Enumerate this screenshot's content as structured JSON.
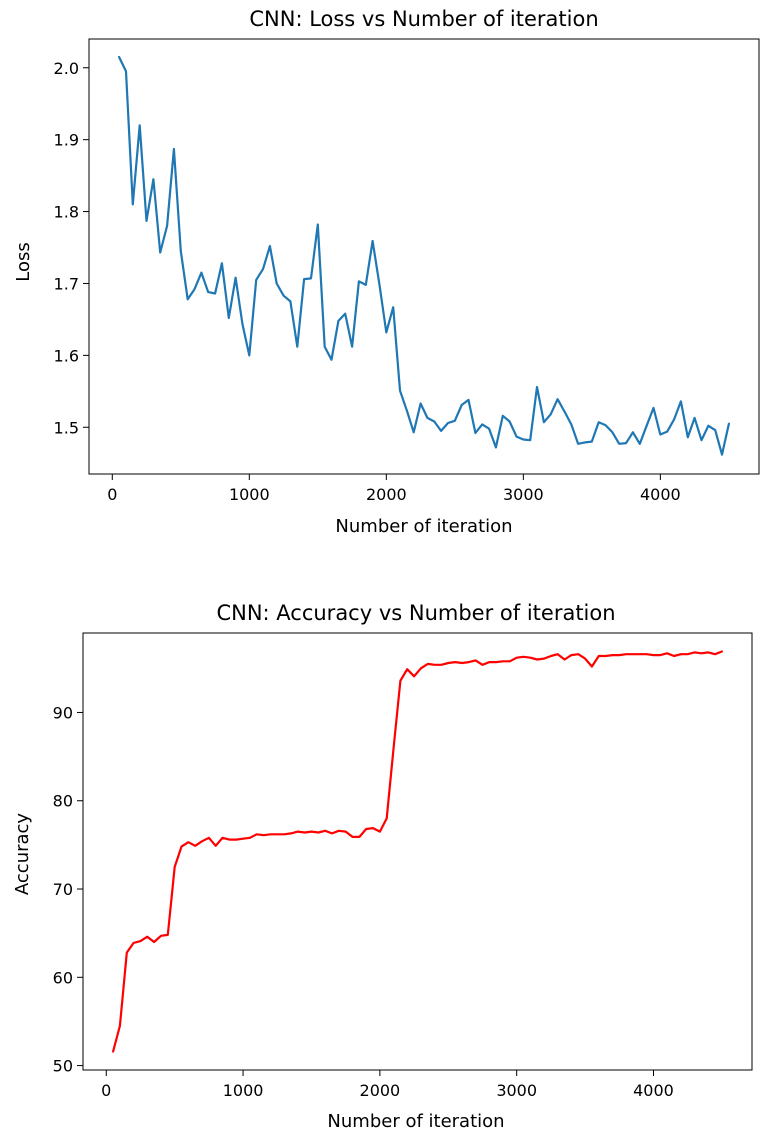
{
  "chart_data": [
    {
      "type": "line",
      "title": "CNN: Loss vs Number of iteration",
      "xlabel": "Number of iteration",
      "ylabel": "Loss",
      "xlim": [
        -170,
        4720
      ],
      "ylim": [
        1.435,
        2.04
      ],
      "xticks": [
        0,
        1000,
        2000,
        3000,
        4000
      ],
      "yticks": [
        1.5,
        1.6,
        1.7,
        1.8,
        1.9,
        2.0
      ],
      "ytick_decimals": 1,
      "grid": false,
      "color": "#1f77b4",
      "x": [
        50,
        100,
        150,
        200,
        250,
        300,
        350,
        400,
        450,
        500,
        550,
        600,
        650,
        700,
        750,
        800,
        850,
        900,
        950,
        1000,
        1050,
        1100,
        1150,
        1200,
        1250,
        1300,
        1350,
        1400,
        1450,
        1500,
        1550,
        1600,
        1650,
        1700,
        1750,
        1800,
        1850,
        1900,
        1950,
        2000,
        2050,
        2100,
        2150,
        2200,
        2250,
        2300,
        2350,
        2400,
        2450,
        2500,
        2550,
        2600,
        2650,
        2700,
        2750,
        2800,
        2850,
        2900,
        2950,
        3000,
        3050,
        3100,
        3150,
        3200,
        3250,
        3300,
        3350,
        3400,
        3450,
        3500,
        3550,
        3600,
        3650,
        3700,
        3750,
        3800,
        3850,
        3900,
        3950,
        4000,
        4050,
        4100,
        4150,
        4200,
        4250,
        4300,
        4350,
        4400,
        4450,
        4500
      ],
      "y": [
        2.015,
        1.995,
        1.81,
        1.92,
        1.787,
        1.845,
        1.743,
        1.78,
        1.887,
        1.745,
        1.678,
        1.692,
        1.715,
        1.688,
        1.686,
        1.728,
        1.652,
        1.708,
        1.643,
        1.6,
        1.705,
        1.72,
        1.752,
        1.7,
        1.683,
        1.675,
        1.612,
        1.706,
        1.707,
        1.782,
        1.612,
        1.594,
        1.648,
        1.658,
        1.612,
        1.703,
        1.698,
        1.759,
        1.698,
        1.632,
        1.667,
        1.551,
        1.523,
        1.493,
        1.533,
        1.513,
        1.508,
        1.495,
        1.506,
        1.509,
        1.531,
        1.538,
        1.492,
        1.504,
        1.498,
        1.472,
        1.516,
        1.508,
        1.487,
        1.483,
        1.482,
        1.556,
        1.507,
        1.518,
        1.539,
        1.522,
        1.504,
        1.477,
        1.479,
        1.48,
        1.507,
        1.503,
        1.493,
        1.477,
        1.478,
        1.493,
        1.477,
        1.502,
        1.527,
        1.49,
        1.494,
        1.511,
        1.536,
        1.486,
        1.513,
        1.482,
        1.502,
        1.496,
        1.462,
        1.505
      ]
    },
    {
      "type": "line",
      "title": "CNN: Accuracy vs Number of iteration",
      "xlabel": "Number of iteration",
      "ylabel": "Accuracy",
      "xlim": [
        -170,
        4720
      ],
      "ylim": [
        49.5,
        99.0
      ],
      "xticks": [
        0,
        1000,
        2000,
        3000,
        4000
      ],
      "yticks": [
        50,
        60,
        70,
        80,
        90
      ],
      "ytick_decimals": 0,
      "grid": false,
      "color": "#ff0000",
      "x": [
        50,
        100,
        150,
        200,
        250,
        300,
        350,
        400,
        450,
        500,
        550,
        600,
        650,
        700,
        750,
        800,
        850,
        900,
        950,
        1000,
        1050,
        1100,
        1150,
        1200,
        1250,
        1300,
        1350,
        1400,
        1450,
        1500,
        1550,
        1600,
        1650,
        1700,
        1750,
        1800,
        1850,
        1900,
        1950,
        2000,
        2050,
        2100,
        2150,
        2200,
        2250,
        2300,
        2350,
        2400,
        2450,
        2500,
        2550,
        2600,
        2650,
        2700,
        2750,
        2800,
        2850,
        2900,
        2950,
        3000,
        3050,
        3100,
        3150,
        3200,
        3250,
        3300,
        3350,
        3400,
        3450,
        3500,
        3550,
        3600,
        3650,
        3700,
        3750,
        3800,
        3850,
        3900,
        3950,
        4000,
        4050,
        4100,
        4150,
        4200,
        4250,
        4300,
        4350,
        4400,
        4450,
        4500
      ],
      "y": [
        51.6,
        54.5,
        62.8,
        63.9,
        64.1,
        64.6,
        64.0,
        64.7,
        64.8,
        72.5,
        74.8,
        75.3,
        74.9,
        75.4,
        75.8,
        74.9,
        75.8,
        75.6,
        75.6,
        75.7,
        75.8,
        76.2,
        76.1,
        76.2,
        76.2,
        76.2,
        76.3,
        76.5,
        76.4,
        76.5,
        76.4,
        76.6,
        76.3,
        76.6,
        76.5,
        75.9,
        75.9,
        76.8,
        76.9,
        76.5,
        78.0,
        86.0,
        93.6,
        94.9,
        94.1,
        95.0,
        95.5,
        95.4,
        95.4,
        95.6,
        95.7,
        95.6,
        95.7,
        95.9,
        95.4,
        95.7,
        95.7,
        95.8,
        95.8,
        96.2,
        96.3,
        96.2,
        96.0,
        96.1,
        96.4,
        96.6,
        96.0,
        96.5,
        96.6,
        96.1,
        95.2,
        96.4,
        96.4,
        96.5,
        96.5,
        96.6,
        96.6,
        96.6,
        96.6,
        96.5,
        96.5,
        96.7,
        96.4,
        96.6,
        96.6,
        96.8,
        96.7,
        96.8,
        96.6,
        96.9
      ]
    }
  ]
}
